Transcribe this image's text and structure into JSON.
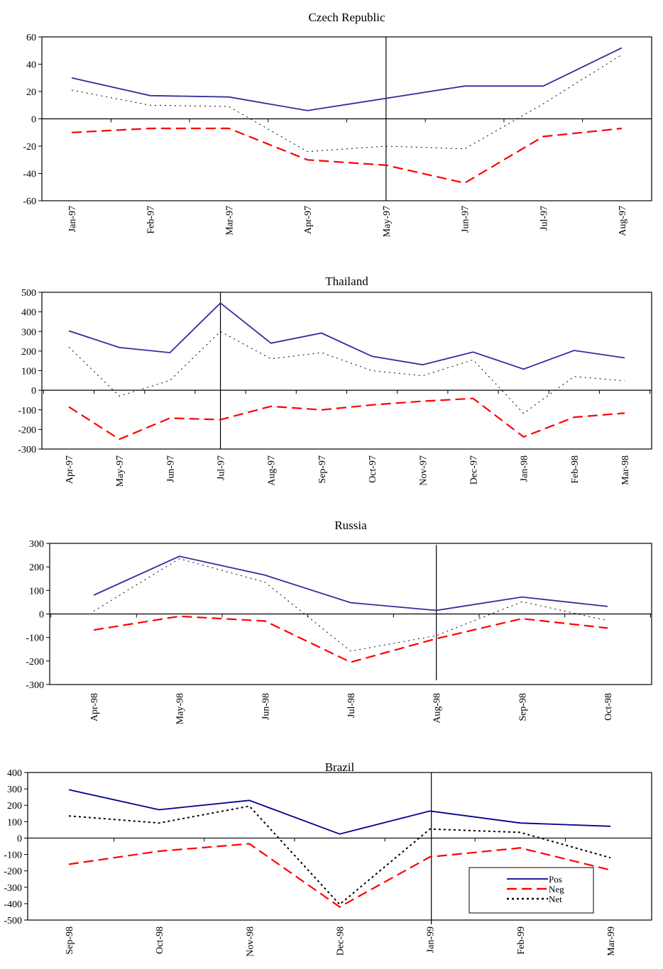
{
  "chart_data": [
    {
      "type": "line",
      "title": "Czech Republic",
      "categories": [
        "Jan-97",
        "Feb-97",
        "Mar-97",
        "Apr-97",
        "May-97",
        "Jun-97",
        "Jul-97",
        "Aug-97"
      ],
      "ylim": [
        -60,
        60
      ],
      "yticks": [
        60,
        40,
        20,
        0,
        -20,
        -40,
        -60
      ],
      "event_category": "May-97",
      "series": [
        {
          "key": "pos",
          "values": [
            30,
            17,
            16,
            6,
            15,
            24,
            24,
            52
          ]
        },
        {
          "key": "neg",
          "values": [
            -10,
            -7,
            -7,
            -30,
            -34,
            -47,
            -13,
            -7
          ]
        },
        {
          "key": "net",
          "values": [
            21,
            10,
            9,
            -24,
            -20,
            -22,
            11,
            47
          ]
        }
      ]
    },
    {
      "type": "line",
      "title": "Thailand",
      "categories": [
        "Apr-97",
        "May-97",
        "Jun-97",
        "Jul-97",
        "Aug-97",
        "Sep-97",
        "Oct-97",
        "Nov-97",
        "Dec-97",
        "Jan-98",
        "Feb-98",
        "Mar-98"
      ],
      "ylim": [
        -300,
        500
      ],
      "yticks": [
        500,
        400,
        300,
        200,
        100,
        0,
        -100,
        -200,
        -300
      ],
      "event_category": "Jul-97",
      "series": [
        {
          "key": "pos",
          "values": [
            303,
            218,
            192,
            445,
            240,
            292,
            173,
            130,
            195,
            108,
            203,
            165
          ]
        },
        {
          "key": "neg",
          "values": [
            -85,
            -250,
            -142,
            -150,
            -82,
            -100,
            -75,
            -56,
            -42,
            -238,
            -138,
            -117
          ]
        },
        {
          "key": "net",
          "values": [
            220,
            -30,
            50,
            300,
            160,
            192,
            100,
            74,
            155,
            -118,
            70,
            48
          ]
        }
      ]
    },
    {
      "type": "line",
      "title": "Russia",
      "categories": [
        "Apr-98",
        "May-98",
        "Jun-98",
        "Jul-98",
        "Aug-98",
        "Sep-98",
        "Oct-98"
      ],
      "ylim": [
        -300,
        300
      ],
      "yticks": [
        300,
        200,
        100,
        0,
        -100,
        -200,
        -300
      ],
      "event_category": "Aug-98",
      "series": [
        {
          "key": "pos",
          "values": [
            80,
            245,
            165,
            48,
            15,
            72,
            32
          ]
        },
        {
          "key": "neg",
          "values": [
            -68,
            -10,
            -30,
            -205,
            -105,
            -20,
            -60
          ]
        },
        {
          "key": "net",
          "values": [
            12,
            235,
            135,
            -158,
            -92,
            52,
            -28
          ]
        }
      ]
    },
    {
      "type": "line",
      "title": "Brazil",
      "categories": [
        "Sep-98",
        "Oct-98",
        "Nov-98",
        "Dec-98",
        "Jan-99",
        "Feb-99",
        "Mar-99"
      ],
      "ylim": [
        -500,
        400
      ],
      "yticks": [
        400,
        300,
        200,
        100,
        0,
        -100,
        -200,
        -300,
        -400,
        -500
      ],
      "event_category": "Jan-99",
      "legend": {
        "placement": "bottom-right",
        "entries": [
          {
            "key": "pos",
            "label": "Pos"
          },
          {
            "key": "neg",
            "label": "Neg"
          },
          {
            "key": "net",
            "label": "Net"
          }
        ]
      },
      "series": [
        {
          "key": "pos",
          "values": [
            295,
            173,
            230,
            25,
            165,
            92,
            72
          ]
        },
        {
          "key": "neg",
          "values": [
            -160,
            -80,
            -35,
            -420,
            -115,
            -60,
            -195
          ]
        },
        {
          "key": "net",
          "values": [
            135,
            92,
            195,
            -405,
            55,
            35,
            -120
          ]
        }
      ]
    }
  ],
  "series_styles": {
    "pos": {
      "color": "#2e2e9c",
      "dash": ""
    },
    "neg": {
      "color": "#ff0000",
      "dash": "14 7"
    },
    "net": {
      "color": "#000000",
      "dash": "2 5"
    }
  },
  "brazil_series_styles": {
    "pos": {
      "color": "#00008b",
      "dash": ""
    },
    "neg": {
      "color": "#ff0000",
      "dash": "14 7"
    },
    "net": {
      "color": "#000000",
      "dash": "3 4"
    }
  }
}
